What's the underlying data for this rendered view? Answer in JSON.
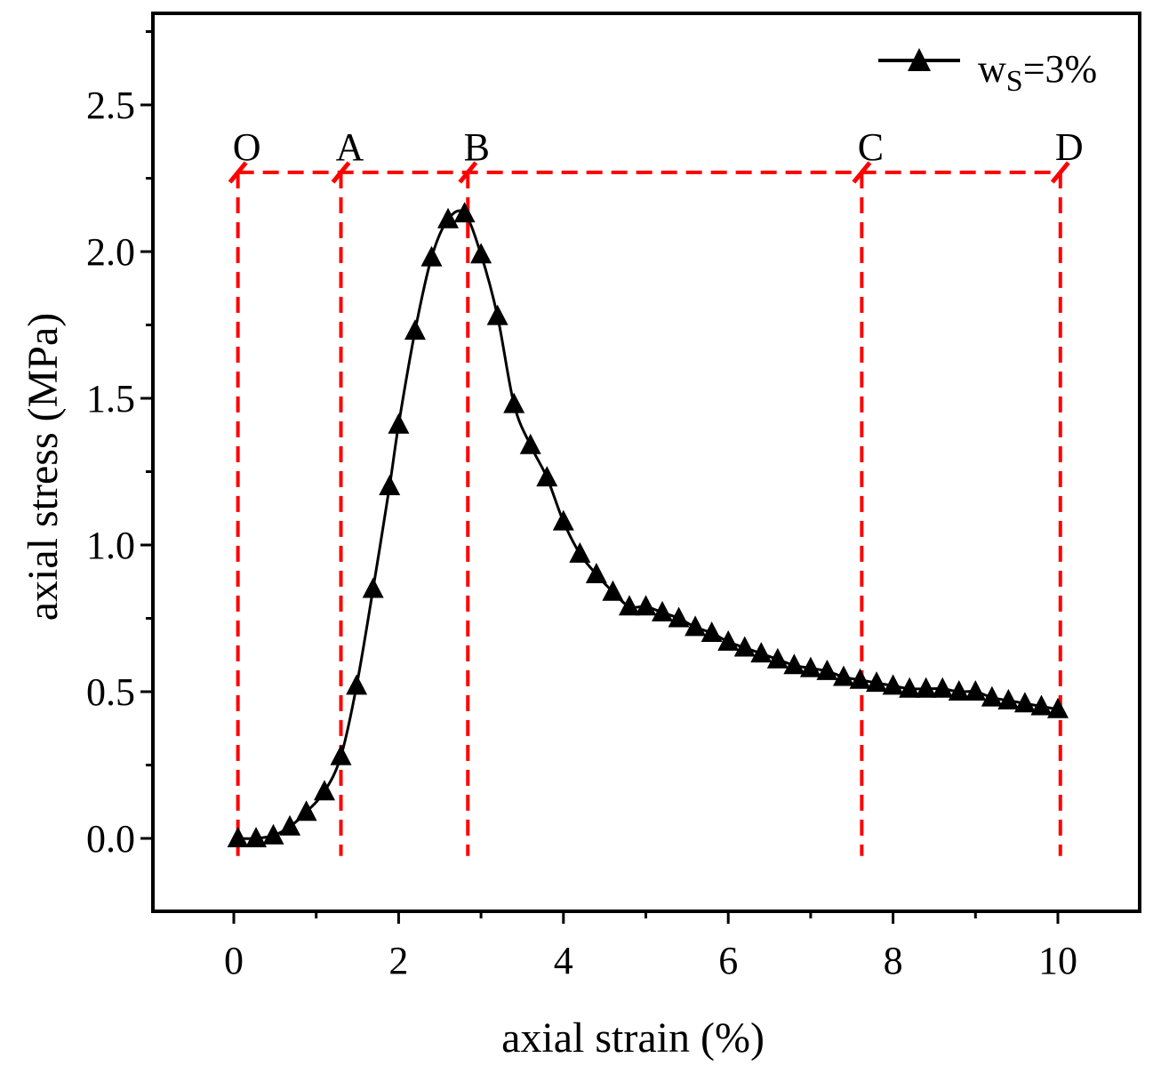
{
  "chart_data": {
    "type": "line",
    "title": "",
    "xlabel": "axial strain (%)",
    "ylabel": "axial stress (MPa)",
    "xlim": [
      -1,
      11
    ],
    "ylim": [
      -0.25,
      2.8
    ],
    "x_ticks": [
      0,
      2,
      4,
      6,
      8,
      10
    ],
    "x_tick_labels": [
      "0",
      "2",
      "4",
      "6",
      "8",
      "10"
    ],
    "y_ticks": [
      0.0,
      0.5,
      1.0,
      1.5,
      2.0,
      2.5
    ],
    "y_tick_labels": [
      "0.0",
      "0.5",
      "1.0",
      "1.5",
      "2.0",
      "2.5"
    ],
    "legend": {
      "position": "top-right",
      "label_main": "w",
      "label_sub": "S",
      "label_rest": "=3%"
    },
    "series": [
      {
        "name": "wS=3%",
        "color": "#000000",
        "marker": "triangle",
        "x": [
          0.05,
          0.27,
          0.48,
          0.68,
          0.88,
          1.1,
          1.3,
          1.49,
          1.69,
          1.89,
          2.0,
          2.2,
          2.4,
          2.6,
          2.8,
          3.0,
          3.2,
          3.4,
          3.6,
          3.8,
          4.0,
          4.2,
          4.4,
          4.6,
          4.8,
          5.0,
          5.2,
          5.4,
          5.6,
          5.8,
          6.0,
          6.2,
          6.4,
          6.6,
          6.8,
          7.0,
          7.2,
          7.4,
          7.6,
          7.8,
          8.0,
          8.2,
          8.4,
          8.6,
          8.8,
          9.0,
          9.2,
          9.4,
          9.6,
          9.8,
          10.0
        ],
        "y": [
          0.0,
          0.0,
          0.01,
          0.04,
          0.09,
          0.16,
          0.28,
          0.52,
          0.85,
          1.2,
          1.41,
          1.73,
          1.98,
          2.11,
          2.13,
          1.99,
          1.78,
          1.48,
          1.34,
          1.23,
          1.08,
          0.97,
          0.9,
          0.84,
          0.79,
          0.79,
          0.77,
          0.75,
          0.72,
          0.7,
          0.67,
          0.65,
          0.63,
          0.61,
          0.59,
          0.58,
          0.57,
          0.55,
          0.54,
          0.53,
          0.52,
          0.51,
          0.51,
          0.51,
          0.5,
          0.5,
          0.48,
          0.47,
          0.46,
          0.45,
          0.44
        ]
      }
    ],
    "reference_lines": {
      "color": "#ff0000",
      "top_y": 2.27,
      "markers": [
        {
          "label": "O",
          "x": 0.05
        },
        {
          "label": "A",
          "x": 1.3
        },
        {
          "label": "B",
          "x": 2.84
        },
        {
          "label": "C",
          "x": 7.62
        },
        {
          "label": "D",
          "x": 10.03
        }
      ]
    }
  }
}
